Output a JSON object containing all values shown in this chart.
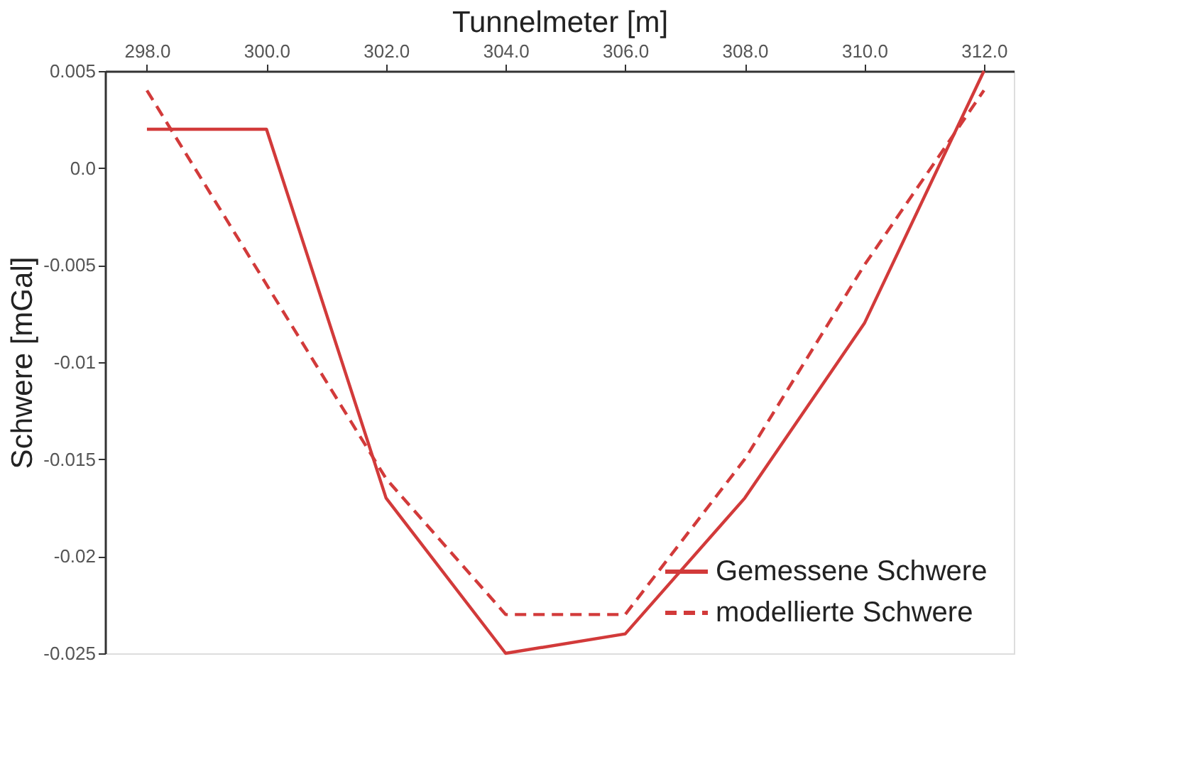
{
  "chart_data": {
    "type": "line",
    "xlabel": "Tunnelmeter [m]",
    "ylabel": "Schwere [mGal]",
    "x": [
      298,
      300,
      302,
      304,
      306,
      308,
      310,
      312
    ],
    "series": [
      {
        "name": "Gemessene Schwere",
        "color": "#d23a3a",
        "line_style": "solid",
        "values": [
          0.002,
          0.002,
          -0.017,
          -0.025,
          -0.024,
          -0.017,
          -0.008,
          0.005
        ]
      },
      {
        "name": "modellierte Schwere",
        "color": "#d23a3a",
        "line_style": "dashed",
        "values": [
          0.004,
          -0.006,
          -0.016,
          -0.023,
          -0.023,
          -0.015,
          -0.005,
          0.004
        ]
      }
    ],
    "xlim": [
      297.3,
      312.5
    ],
    "xticks": [
      {
        "value": 298,
        "label": "298.0"
      },
      {
        "value": 300,
        "label": "300.0"
      },
      {
        "value": 302,
        "label": "302.0"
      },
      {
        "value": 304,
        "label": "304.0"
      },
      {
        "value": 306,
        "label": "306.0"
      },
      {
        "value": 308,
        "label": "308.0"
      },
      {
        "value": 310,
        "label": "310.0"
      },
      {
        "value": 312,
        "label": "312.0"
      }
    ],
    "ylim": [
      -0.025,
      0.005
    ],
    "yticks": [
      0.005,
      {
        "value": 0,
        "label": "0.0"
      },
      -0.005,
      -0.01,
      -0.015,
      -0.02,
      -0.025
    ],
    "grid": false,
    "legend": "bottom right",
    "marker": "none"
  }
}
